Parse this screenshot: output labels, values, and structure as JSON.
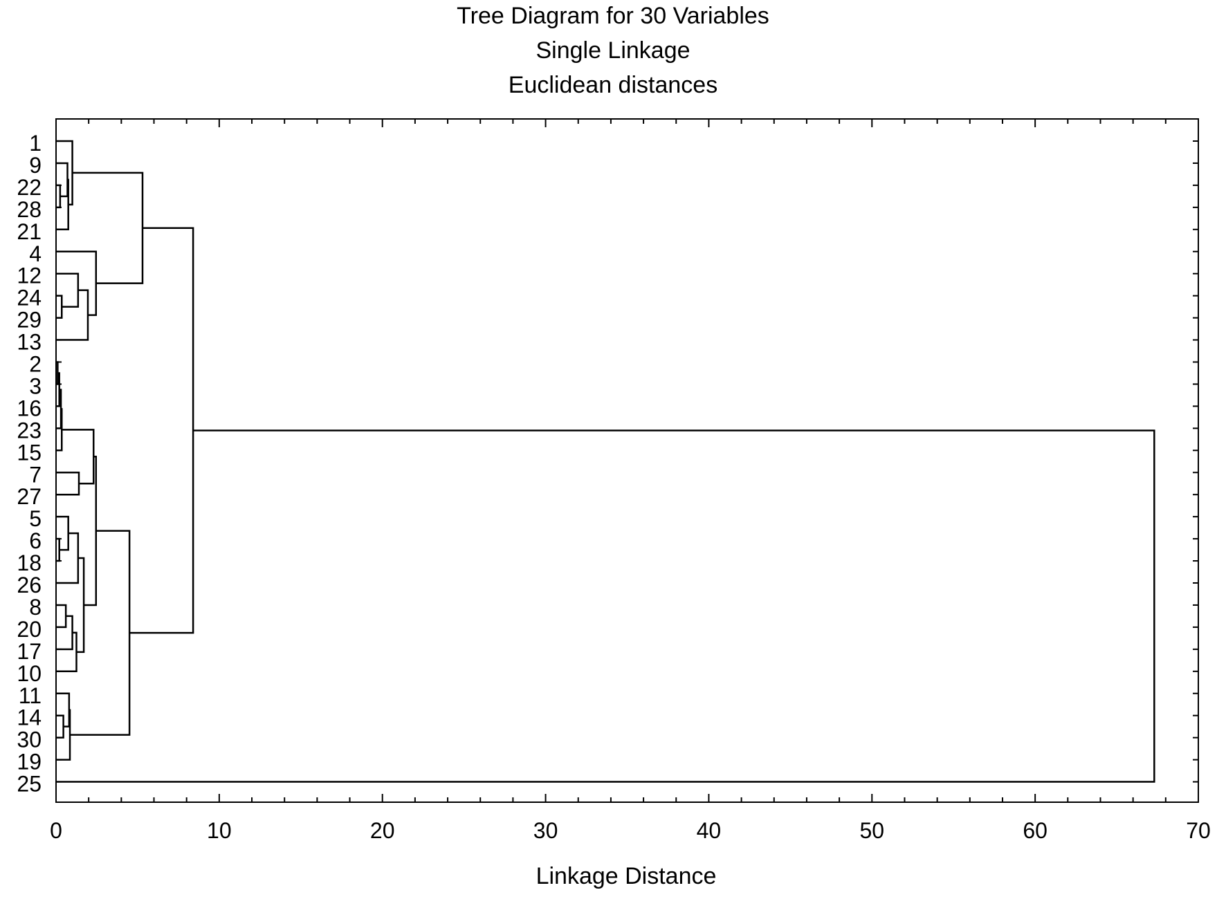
{
  "chart_data": {
    "type": "dendrogram",
    "title": [
      "Tree Diagram for 30  Variables",
      "Single Linkage",
      "Euclidean distances"
    ],
    "xlabel": "Linkage Distance",
    "ylabel": "",
    "xlim": [
      0,
      70
    ],
    "xticks": [
      0,
      10,
      20,
      30,
      40,
      50,
      60,
      70
    ],
    "grid": false,
    "leaves": [
      "1",
      "9",
      "22",
      "28",
      "21",
      "4",
      "12",
      "24",
      "29",
      "13",
      "2",
      "3",
      "16",
      "23",
      "15",
      "7",
      "27",
      "5",
      "6",
      "18",
      "26",
      "8",
      "20",
      "17",
      "10",
      "11",
      "14",
      "30",
      "19",
      "25"
    ],
    "merges": [
      {
        "id": "a1",
        "children": [
          "22",
          "28"
        ],
        "distance": 0.25
      },
      {
        "id": "a2",
        "children": [
          "9",
          "a1"
        ],
        "distance": 0.7
      },
      {
        "id": "a3",
        "children": [
          "a2",
          "21"
        ],
        "distance": 0.75
      },
      {
        "id": "a4",
        "children": [
          "1",
          "a3"
        ],
        "distance": 1.0
      },
      {
        "id": "b1",
        "children": [
          "24",
          "29"
        ],
        "distance": 0.35
      },
      {
        "id": "b2",
        "children": [
          "12",
          "b1"
        ],
        "distance": 1.35
      },
      {
        "id": "b3",
        "children": [
          "b2",
          "13"
        ],
        "distance": 1.95
      },
      {
        "id": "b4",
        "children": [
          "4",
          "b3"
        ],
        "distance": 2.45
      },
      {
        "id": "g1",
        "children": [
          "a4",
          "b4"
        ],
        "distance": 5.3
      },
      {
        "id": "c1",
        "children": [
          "2",
          "3"
        ],
        "distance": 0.1
      },
      {
        "id": "c2",
        "children": [
          "c1",
          "16"
        ],
        "distance": 0.2
      },
      {
        "id": "c3",
        "children": [
          "c2",
          "23"
        ],
        "distance": 0.3
      },
      {
        "id": "c4",
        "children": [
          "c3",
          "15"
        ],
        "distance": 0.35
      },
      {
        "id": "d1",
        "children": [
          "7",
          "27"
        ],
        "distance": 1.4
      },
      {
        "id": "c5",
        "children": [
          "c4",
          "d1"
        ],
        "distance": 2.3
      },
      {
        "id": "e1",
        "children": [
          "6",
          "18"
        ],
        "distance": 0.2
      },
      {
        "id": "e2",
        "children": [
          "5",
          "e1"
        ],
        "distance": 0.75
      },
      {
        "id": "e3",
        "children": [
          "e2",
          "26"
        ],
        "distance": 1.35
      },
      {
        "id": "f1",
        "children": [
          "8",
          "20"
        ],
        "distance": 0.6
      },
      {
        "id": "f2",
        "children": [
          "f1",
          "17"
        ],
        "distance": 1.0
      },
      {
        "id": "f3",
        "children": [
          "f2",
          "10"
        ],
        "distance": 1.25
      },
      {
        "id": "ef",
        "children": [
          "e3",
          "f3"
        ],
        "distance": 1.7
      },
      {
        "id": "cef",
        "children": [
          "c5",
          "ef"
        ],
        "distance": 2.45
      },
      {
        "id": "h1",
        "children": [
          "14",
          "30"
        ],
        "distance": 0.45
      },
      {
        "id": "h2",
        "children": [
          "11",
          "h1"
        ],
        "distance": 0.8
      },
      {
        "id": "h3",
        "children": [
          "h2",
          "19"
        ],
        "distance": 0.85
      },
      {
        "id": "g2",
        "children": [
          "cef",
          "h3"
        ],
        "distance": 4.5
      },
      {
        "id": "g3",
        "children": [
          "g1",
          "g2"
        ],
        "distance": 8.4
      },
      {
        "id": "root",
        "children": [
          "g3",
          "25"
        ],
        "distance": 67.3
      }
    ]
  }
}
